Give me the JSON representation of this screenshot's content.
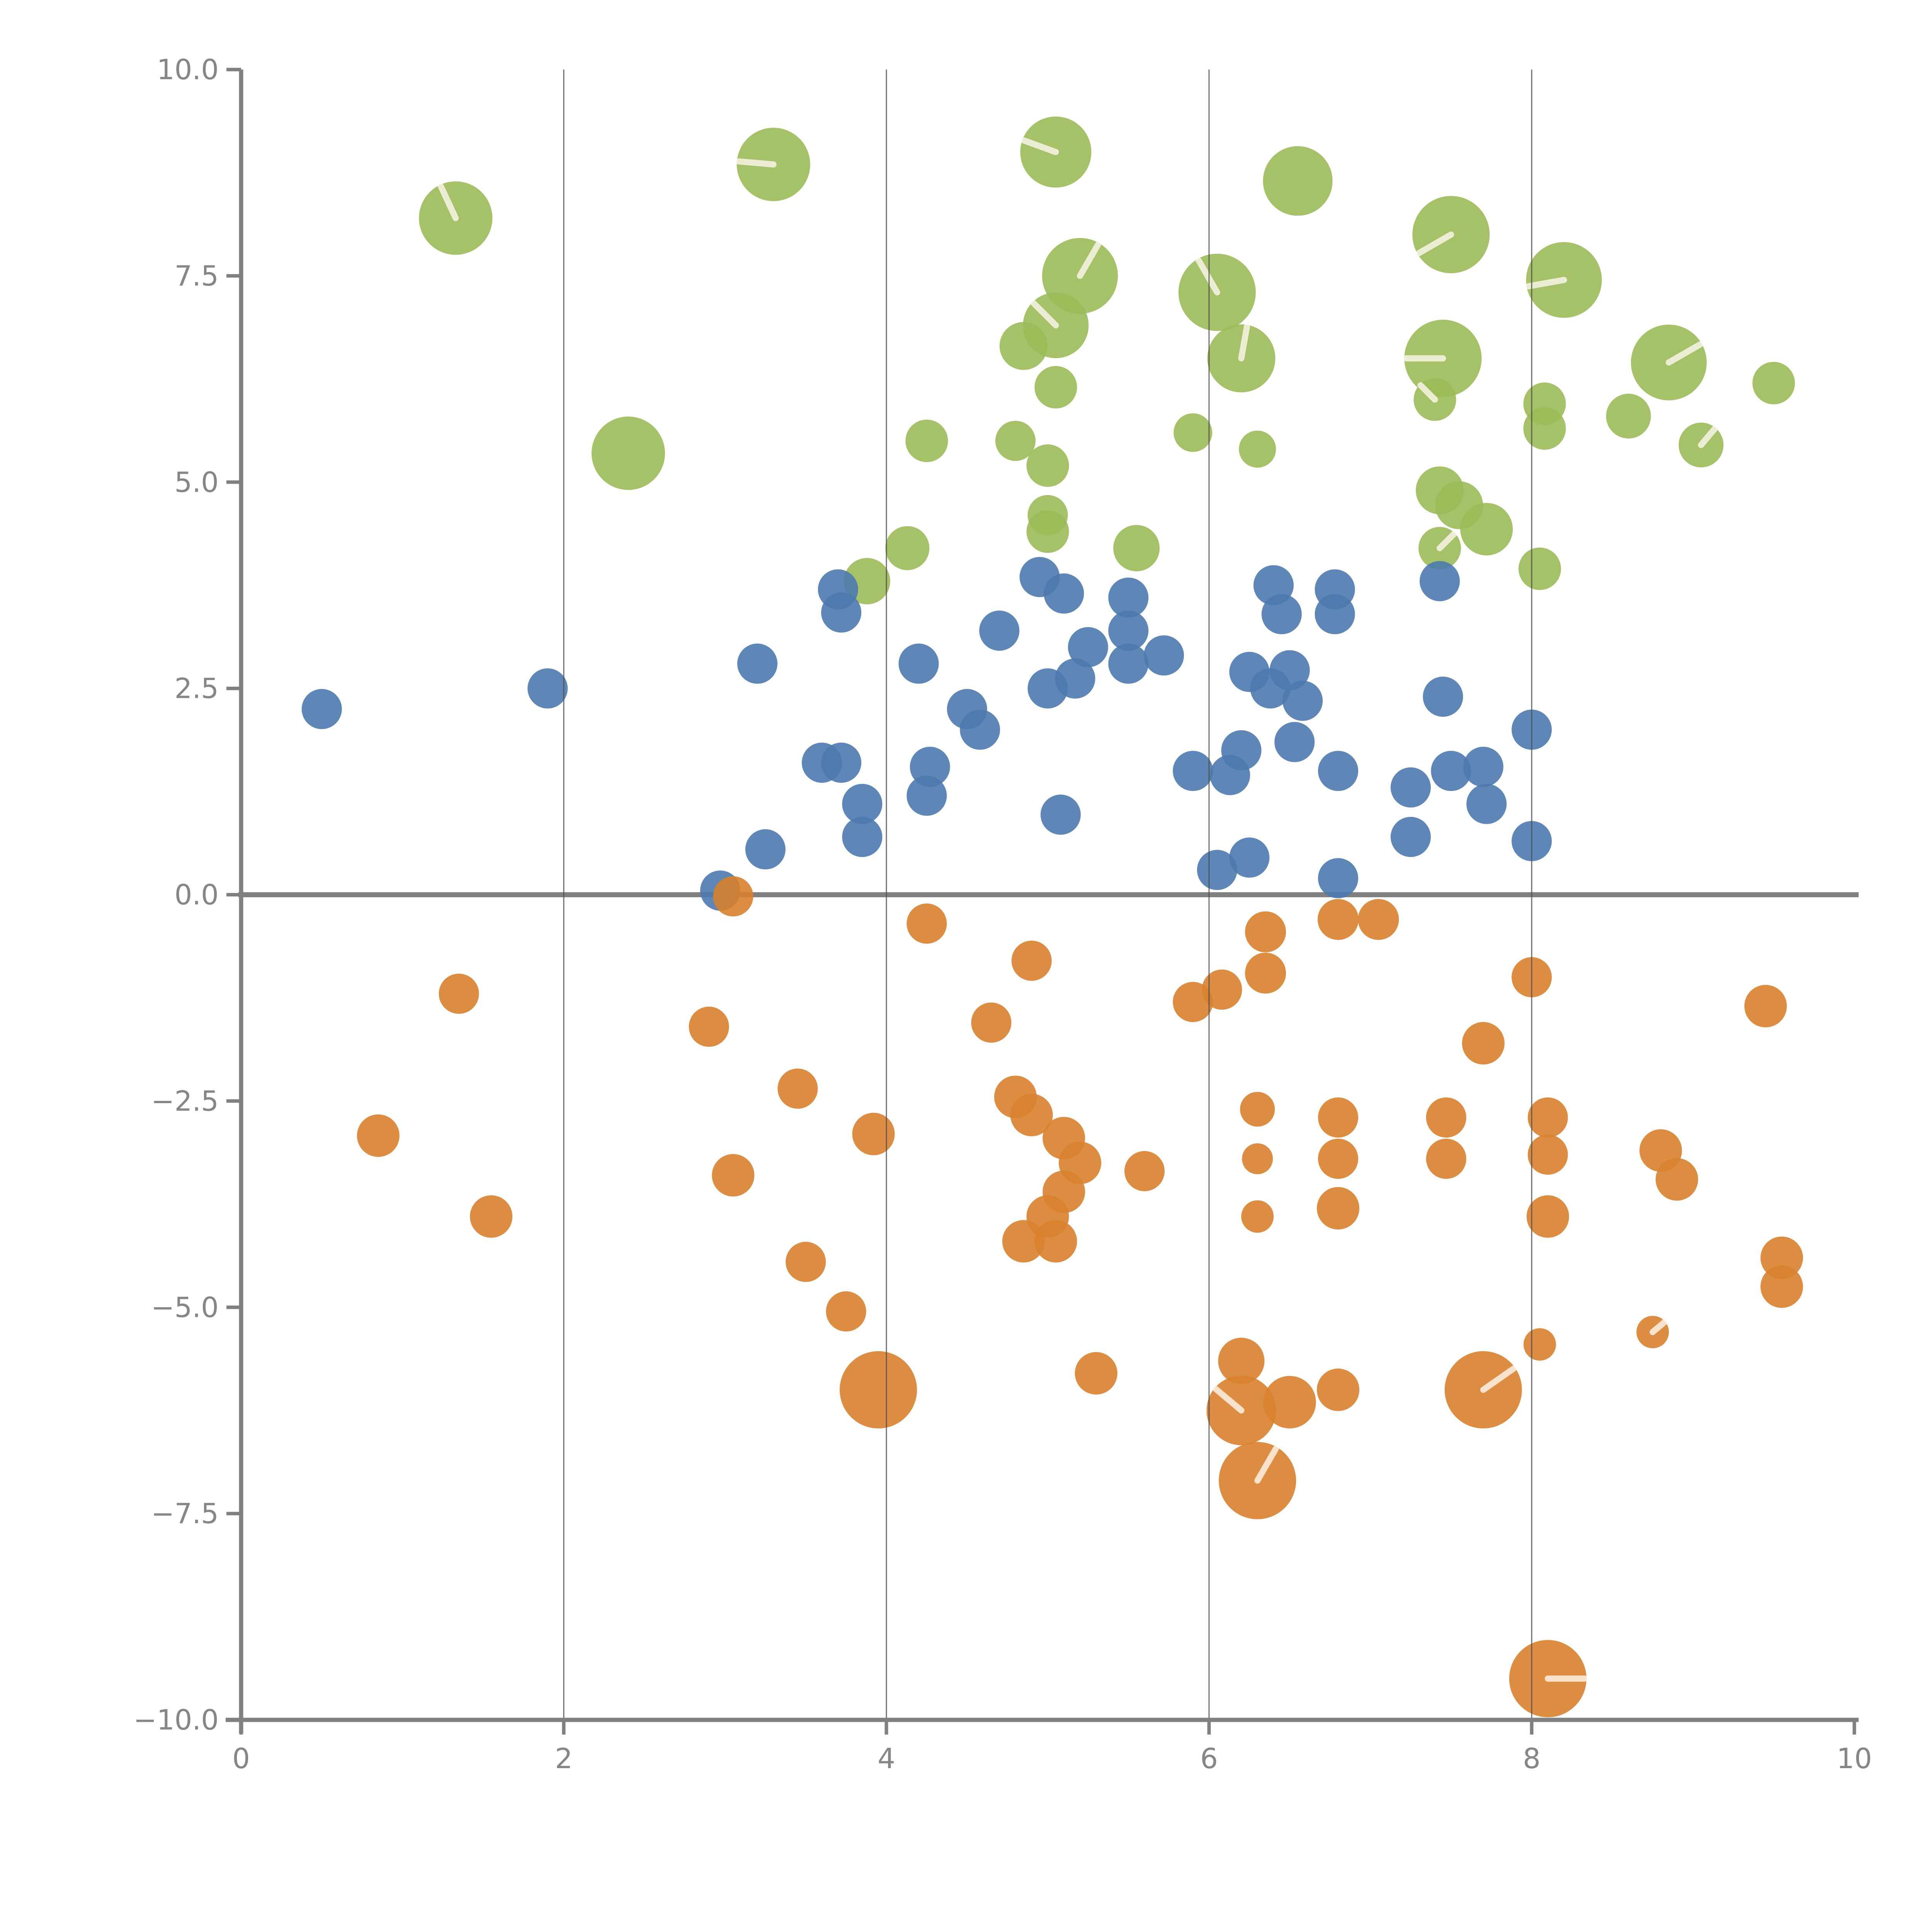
{
  "figure": {
    "background": "#ffffff",
    "type_label": "bubble-scatter-plot"
  },
  "chart_data": {
    "type": "scatter",
    "title": "",
    "xlabel": "",
    "ylabel": "",
    "xlim": [
      0,
      10
    ],
    "ylim": [
      -10,
      10
    ],
    "x_tick_labels": [
      "0",
      "2",
      "4",
      "6",
      "8",
      "10"
    ],
    "x_tick_values": [
      0,
      2,
      4,
      6,
      8,
      10
    ],
    "y_tick_labels": [
      "10.0",
      "7.5",
      "5.0",
      "2.5",
      "0.0",
      "−2.5",
      "−5.0",
      "−7.5",
      "−10.0"
    ],
    "y_tick_values": [
      10,
      7.5,
      5,
      2.5,
      0,
      -2.5,
      -5,
      -7.5,
      -10
    ],
    "vertical_gridlines_at_x": [
      2,
      4,
      6,
      8
    ],
    "zero_line_y": 0,
    "grid": "vertical-only",
    "legend": "none",
    "axis_color": "#808080",
    "tick_label_color": "#868686",
    "gridline_color": "#4d4d4d",
    "zero_line_color": "#808080",
    "marker_opacity": 0.9,
    "point_format": "[x, y, radius_px, optional_white_slash_angle_deg]",
    "series": [
      {
        "name": "green",
        "color": "#9BBB59",
        "points": [
          [
            1.33,
            8.2,
            95,
            -115
          ],
          [
            3.3,
            8.85,
            95,
            185
          ],
          [
            5.05,
            9.0,
            92,
            -160
          ],
          [
            6.55,
            8.65,
            90,
            null
          ],
          [
            7.5,
            8.0,
            100,
            150
          ],
          [
            8.2,
            7.45,
            98,
            170
          ],
          [
            5.2,
            7.5,
            98,
            -60
          ],
          [
            5.05,
            6.9,
            85,
            -135
          ],
          [
            4.85,
            6.65,
            62,
            null
          ],
          [
            5.05,
            6.15,
            55,
            null
          ],
          [
            6.05,
            7.3,
            100,
            -120
          ],
          [
            6.2,
            6.5,
            88,
            -80
          ],
          [
            7.45,
            6.5,
            100,
            180
          ],
          [
            8.85,
            6.45,
            98,
            -30
          ],
          [
            9.5,
            6.2,
            55,
            null
          ],
          [
            2.4,
            5.35,
            95,
            null
          ],
          [
            4.25,
            5.5,
            55,
            null
          ],
          [
            4.8,
            5.5,
            52,
            null
          ],
          [
            5.0,
            5.2,
            55,
            null
          ],
          [
            5.0,
            4.6,
            52,
            null
          ],
          [
            7.4,
            6.0,
            55,
            -135
          ],
          [
            8.08,
            5.95,
            55,
            null
          ],
          [
            8.08,
            5.65,
            55,
            null
          ],
          [
            8.6,
            5.8,
            58,
            null
          ],
          [
            9.05,
            5.45,
            58,
            -50
          ],
          [
            5.9,
            5.6,
            50,
            null
          ],
          [
            6.3,
            5.4,
            48,
            null
          ],
          [
            3.88,
            3.8,
            60,
            null
          ],
          [
            4.13,
            4.2,
            57,
            null
          ],
          [
            5.0,
            4.4,
            55,
            null
          ],
          [
            5.55,
            4.2,
            60,
            null
          ],
          [
            7.43,
            4.9,
            62,
            null
          ],
          [
            7.55,
            4.72,
            62,
            null
          ],
          [
            7.72,
            4.43,
            68,
            null
          ],
          [
            7.43,
            4.2,
            55,
            -45
          ],
          [
            8.05,
            3.95,
            55,
            null
          ]
        ]
      },
      {
        "name": "blue",
        "color": "#4D79AE",
        "points": [
          [
            0.5,
            2.25,
            52,
            null
          ],
          [
            1.9,
            2.5,
            52,
            null
          ],
          [
            3.2,
            2.8,
            52,
            null
          ],
          [
            4.2,
            2.8,
            52,
            null
          ],
          [
            3.7,
            3.7,
            52,
            null
          ],
          [
            3.72,
            3.42,
            52,
            null
          ],
          [
            4.7,
            3.2,
            52,
            null
          ],
          [
            4.95,
            3.85,
            52,
            null
          ],
          [
            5.1,
            3.65,
            52,
            null
          ],
          [
            5.5,
            3.6,
            52,
            null
          ],
          [
            5.5,
            3.2,
            52,
            null
          ],
          [
            5.5,
            2.8,
            52,
            null
          ],
          [
            5.72,
            2.9,
            52,
            null
          ],
          [
            6.4,
            3.75,
            52,
            null
          ],
          [
            6.45,
            3.4,
            52,
            null
          ],
          [
            6.78,
            3.7,
            52,
            null
          ],
          [
            6.78,
            3.4,
            52,
            null
          ],
          [
            7.43,
            3.8,
            52,
            null
          ],
          [
            5.25,
            3.0,
            52,
            null
          ],
          [
            5.0,
            2.5,
            52,
            null
          ],
          [
            5.17,
            2.62,
            52,
            null
          ],
          [
            4.5,
            2.25,
            52,
            null
          ],
          [
            4.58,
            2.0,
            52,
            null
          ],
          [
            7.45,
            2.4,
            52,
            null
          ],
          [
            6.53,
            1.85,
            52,
            null
          ],
          [
            6.8,
            1.5,
            52,
            null
          ],
          [
            7.25,
            1.3,
            52,
            null
          ],
          [
            7.5,
            1.5,
            52,
            null
          ],
          [
            7.7,
            1.55,
            52,
            null
          ],
          [
            7.72,
            1.1,
            52,
            null
          ],
          [
            8.0,
            2.0,
            52,
            null
          ],
          [
            8.0,
            0.65,
            52,
            null
          ],
          [
            6.25,
            2.7,
            52,
            null
          ],
          [
            6.38,
            2.5,
            52,
            null
          ],
          [
            6.5,
            2.72,
            52,
            null
          ],
          [
            6.58,
            2.35,
            52,
            null
          ],
          [
            5.9,
            1.5,
            52,
            null
          ],
          [
            6.13,
            1.45,
            52,
            null
          ],
          [
            6.2,
            1.75,
            52,
            null
          ],
          [
            3.85,
            1.1,
            52,
            null
          ],
          [
            3.85,
            0.7,
            52,
            null
          ],
          [
            4.27,
            1.55,
            52,
            null
          ],
          [
            4.25,
            1.2,
            52,
            null
          ],
          [
            3.6,
            1.6,
            52,
            null
          ],
          [
            3.72,
            1.6,
            52,
            null
          ],
          [
            5.08,
            0.97,
            52,
            null
          ],
          [
            7.25,
            0.7,
            52,
            null
          ],
          [
            6.8,
            0.2,
            52,
            null
          ],
          [
            2.97,
            0.05,
            52,
            null
          ],
          [
            3.25,
            0.55,
            52,
            null
          ],
          [
            6.05,
            0.3,
            52,
            null
          ],
          [
            6.25,
            0.45,
            52,
            null
          ]
        ]
      },
      {
        "name": "orange",
        "color": "#D8812E",
        "points": [
          [
            3.05,
            -0.02,
            52,
            null
          ],
          [
            4.25,
            -0.35,
            52,
            null
          ],
          [
            4.9,
            -0.8,
            52,
            null
          ],
          [
            4.65,
            -1.55,
            52,
            null
          ],
          [
            1.35,
            -1.2,
            52,
            null
          ],
          [
            2.9,
            -1.6,
            52,
            null
          ],
          [
            3.45,
            -2.35,
            52,
            null
          ],
          [
            0.85,
            -2.92,
            55,
            null
          ],
          [
            1.55,
            -3.9,
            55,
            null
          ],
          [
            3.05,
            -3.4,
            55,
            null
          ],
          [
            6.35,
            -0.45,
            53,
            null
          ],
          [
            6.35,
            -0.95,
            53,
            null
          ],
          [
            6.8,
            -0.3,
            53,
            null
          ],
          [
            7.05,
            -0.3,
            53,
            null
          ],
          [
            8.0,
            -1.0,
            52,
            null
          ],
          [
            9.45,
            -1.35,
            55,
            null
          ],
          [
            7.7,
            -1.8,
            55,
            null
          ],
          [
            5.9,
            -1.3,
            52,
            null
          ],
          [
            6.08,
            -1.15,
            52,
            null
          ],
          [
            4.8,
            -2.45,
            55,
            null
          ],
          [
            4.9,
            -2.67,
            55,
            null
          ],
          [
            5.1,
            -2.95,
            55,
            null
          ],
          [
            5.2,
            -3.25,
            55,
            null
          ],
          [
            5.1,
            -3.6,
            55,
            null
          ],
          [
            5.0,
            -3.9,
            55,
            null
          ],
          [
            4.85,
            -4.2,
            55,
            null
          ],
          [
            5.05,
            -4.2,
            55,
            null
          ],
          [
            5.6,
            -3.35,
            52,
            null
          ],
          [
            6.3,
            -2.6,
            45,
            null
          ],
          [
            6.3,
            -3.2,
            40,
            null
          ],
          [
            6.3,
            -3.9,
            42,
            null
          ],
          [
            6.8,
            -2.7,
            52,
            null
          ],
          [
            6.8,
            -3.2,
            52,
            null
          ],
          [
            6.8,
            -3.8,
            55,
            null
          ],
          [
            7.47,
            -2.7,
            52,
            null
          ],
          [
            7.47,
            -3.2,
            52,
            null
          ],
          [
            8.1,
            -2.7,
            52,
            null
          ],
          [
            8.1,
            -3.15,
            52,
            null
          ],
          [
            8.1,
            -3.9,
            55,
            null
          ],
          [
            8.8,
            -3.1,
            55,
            null
          ],
          [
            8.9,
            -3.45,
            55,
            null
          ],
          [
            9.55,
            -4.4,
            55,
            null
          ],
          [
            9.55,
            -4.75,
            55,
            null
          ],
          [
            8.75,
            -5.3,
            42,
            -40
          ],
          [
            8.05,
            -5.45,
            42,
            null
          ],
          [
            7.7,
            -6.0,
            100,
            -35
          ],
          [
            6.8,
            -6.0,
            55,
            null
          ],
          [
            3.5,
            -4.45,
            52,
            null
          ],
          [
            3.75,
            -5.05,
            52,
            null
          ],
          [
            3.95,
            -6.0,
            100,
            null
          ],
          [
            5.3,
            -5.8,
            55,
            null
          ],
          [
            3.92,
            -2.9,
            55,
            null
          ],
          [
            6.2,
            -5.65,
            60,
            null
          ],
          [
            6.2,
            -6.25,
            90,
            -140
          ],
          [
            6.5,
            -6.15,
            68,
            null
          ],
          [
            6.3,
            -7.1,
            100,
            -60
          ],
          [
            8.1,
            -9.5,
            100,
            0
          ]
        ]
      }
    ]
  }
}
